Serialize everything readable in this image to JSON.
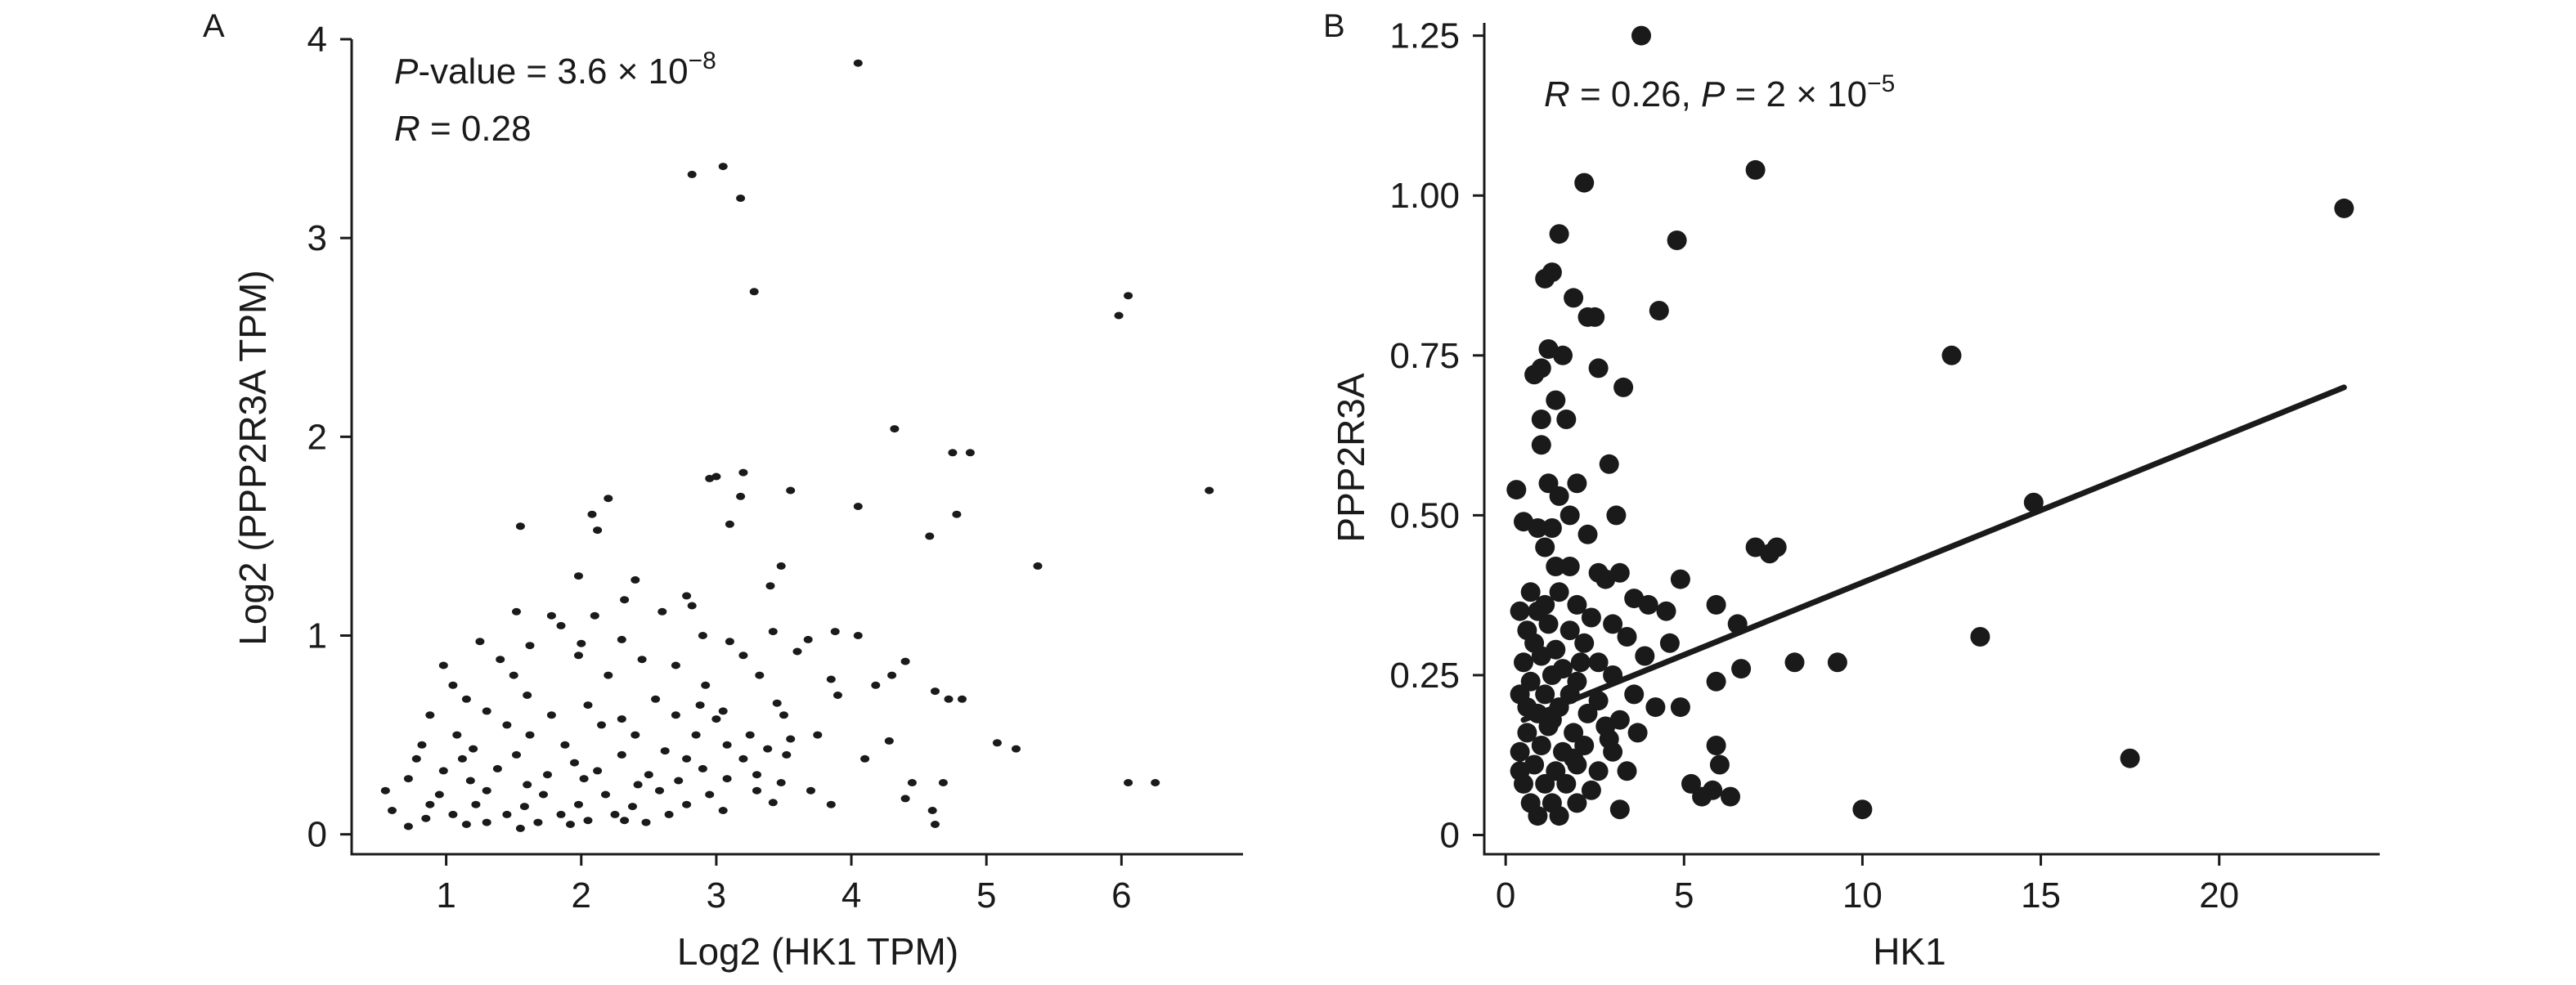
{
  "chart_data": [
    {
      "panel": "A",
      "type": "scatter",
      "xlabel": "Log2 (HK1 TPM)",
      "ylabel": "Log2 (PPP2R3A TPM)",
      "xlim": [
        0.3,
        6.9
      ],
      "ylim": [
        -0.1,
        4.0
      ],
      "xticks": [
        1,
        2,
        3,
        4,
        5,
        6
      ],
      "yticks": [
        0,
        1,
        2,
        3,
        4
      ],
      "grid": false,
      "annotation": {
        "line1_italic": "P",
        "line1_rest": "-value = 3.6 × 10",
        "line1_exp": "−8",
        "line2_italic": "R",
        "line2_rest": " = 0.28"
      },
      "points": [
        [
          4.05,
          3.88
        ],
        [
          2.82,
          3.32
        ],
        [
          3.05,
          3.36
        ],
        [
          3.18,
          3.2
        ],
        [
          3.28,
          2.73
        ],
        [
          6.05,
          2.71
        ],
        [
          5.98,
          2.61
        ],
        [
          4.32,
          2.04
        ],
        [
          4.75,
          1.92
        ],
        [
          4.88,
          1.92
        ],
        [
          6.65,
          1.73
        ],
        [
          2.2,
          1.69
        ],
        [
          2.08,
          1.61
        ],
        [
          3.2,
          1.82
        ],
        [
          2.95,
          1.79
        ],
        [
          3.0,
          1.8
        ],
        [
          3.55,
          1.73
        ],
        [
          3.18,
          1.7
        ],
        [
          4.05,
          1.65
        ],
        [
          4.78,
          1.61
        ],
        [
          3.1,
          1.56
        ],
        [
          1.55,
          1.55
        ],
        [
          2.12,
          1.53
        ],
        [
          4.58,
          1.5
        ],
        [
          5.38,
          1.35
        ],
        [
          3.48,
          1.35
        ],
        [
          1.98,
          1.3
        ],
        [
          2.4,
          1.28
        ],
        [
          2.78,
          1.2
        ],
        [
          3.4,
          1.25
        ],
        [
          2.32,
          1.18
        ],
        [
          2.82,
          1.15
        ],
        [
          1.52,
          1.12
        ],
        [
          1.78,
          1.1
        ],
        [
          2.1,
          1.1
        ],
        [
          2.6,
          1.12
        ],
        [
          1.85,
          1.05
        ],
        [
          1.25,
          0.97
        ],
        [
          1.62,
          0.95
        ],
        [
          2.0,
          0.96
        ],
        [
          2.3,
          0.98
        ],
        [
          2.9,
          1.0
        ],
        [
          3.1,
          0.97
        ],
        [
          3.42,
          1.02
        ],
        [
          3.68,
          0.98
        ],
        [
          3.88,
          1.02
        ],
        [
          4.05,
          1.0
        ],
        [
          0.98,
          0.85
        ],
        [
          1.4,
          0.88
        ],
        [
          1.98,
          0.9
        ],
        [
          2.45,
          0.88
        ],
        [
          2.7,
          0.85
        ],
        [
          3.2,
          0.9
        ],
        [
          3.6,
          0.92
        ],
        [
          4.4,
          0.87
        ],
        [
          1.05,
          0.75
        ],
        [
          1.5,
          0.8
        ],
        [
          2.2,
          0.8
        ],
        [
          2.92,
          0.75
        ],
        [
          3.32,
          0.8
        ],
        [
          3.85,
          0.78
        ],
        [
          4.3,
          0.8
        ],
        [
          4.62,
          0.72
        ],
        [
          4.72,
          0.68
        ],
        [
          4.82,
          0.68
        ],
        [
          1.15,
          0.68
        ],
        [
          1.6,
          0.7
        ],
        [
          2.05,
          0.65
        ],
        [
          2.55,
          0.68
        ],
        [
          2.88,
          0.65
        ],
        [
          3.05,
          0.62
        ],
        [
          3.45,
          0.66
        ],
        [
          3.9,
          0.7
        ],
        [
          4.18,
          0.75
        ],
        [
          0.88,
          0.6
        ],
        [
          1.3,
          0.62
        ],
        [
          1.78,
          0.6
        ],
        [
          2.3,
          0.58
        ],
        [
          2.7,
          0.6
        ],
        [
          3.0,
          0.58
        ],
        [
          3.5,
          0.6
        ],
        [
          1.45,
          0.55
        ],
        [
          2.15,
          0.55
        ],
        [
          2.85,
          0.5
        ],
        [
          3.25,
          0.5
        ],
        [
          3.75,
          0.5
        ],
        [
          1.08,
          0.5
        ],
        [
          1.62,
          0.5
        ],
        [
          2.4,
          0.5
        ],
        [
          3.55,
          0.48
        ],
        [
          4.28,
          0.47
        ],
        [
          0.82,
          0.45
        ],
        [
          1.2,
          0.43
        ],
        [
          1.88,
          0.45
        ],
        [
          2.62,
          0.42
        ],
        [
          3.08,
          0.45
        ],
        [
          3.38,
          0.43
        ],
        [
          5.08,
          0.46
        ],
        [
          5.22,
          0.43
        ],
        [
          0.78,
          0.38
        ],
        [
          1.12,
          0.38
        ],
        [
          1.52,
          0.4
        ],
        [
          1.95,
          0.36
        ],
        [
          2.3,
          0.4
        ],
        [
          2.78,
          0.38
        ],
        [
          3.2,
          0.38
        ],
        [
          3.52,
          0.4
        ],
        [
          4.1,
          0.38
        ],
        [
          0.98,
          0.32
        ],
        [
          1.38,
          0.33
        ],
        [
          1.75,
          0.3
        ],
        [
          2.12,
          0.32
        ],
        [
          2.5,
          0.3
        ],
        [
          2.9,
          0.33
        ],
        [
          3.3,
          0.3
        ],
        [
          0.72,
          0.28
        ],
        [
          1.18,
          0.27
        ],
        [
          1.6,
          0.25
        ],
        [
          2.02,
          0.28
        ],
        [
          2.42,
          0.25
        ],
        [
          2.72,
          0.27
        ],
        [
          3.08,
          0.28
        ],
        [
          3.48,
          0.26
        ],
        [
          4.45,
          0.26
        ],
        [
          4.68,
          0.26
        ],
        [
          6.05,
          0.26
        ],
        [
          6.25,
          0.26
        ],
        [
          0.55,
          0.22
        ],
        [
          0.95,
          0.2
        ],
        [
          1.3,
          0.22
        ],
        [
          1.72,
          0.2
        ],
        [
          2.18,
          0.2
        ],
        [
          2.58,
          0.22
        ],
        [
          2.95,
          0.2
        ],
        [
          3.3,
          0.22
        ],
        [
          3.7,
          0.22
        ],
        [
          4.4,
          0.18
        ],
        [
          0.88,
          0.15
        ],
        [
          1.22,
          0.15
        ],
        [
          1.58,
          0.14
        ],
        [
          1.98,
          0.15
        ],
        [
          2.38,
          0.14
        ],
        [
          2.78,
          0.15
        ],
        [
          3.42,
          0.16
        ],
        [
          3.85,
          0.15
        ],
        [
          0.6,
          0.12
        ],
        [
          1.05,
          0.1
        ],
        [
          1.45,
          0.1
        ],
        [
          1.85,
          0.1
        ],
        [
          2.25,
          0.1
        ],
        [
          2.65,
          0.1
        ],
        [
          3.05,
          0.12
        ],
        [
          4.6,
          0.12
        ],
        [
          0.85,
          0.08
        ],
        [
          1.3,
          0.06
        ],
        [
          1.68,
          0.06
        ],
        [
          2.05,
          0.07
        ],
        [
          2.48,
          0.06
        ],
        [
          0.72,
          0.04
        ],
        [
          1.15,
          0.05
        ],
        [
          1.55,
          0.03
        ],
        [
          1.92,
          0.05
        ],
        [
          2.32,
          0.07
        ],
        [
          4.62,
          0.05
        ]
      ]
    },
    {
      "panel": "B",
      "type": "scatter",
      "xlabel": "HK1",
      "ylabel": "PPP2R3A",
      "xlim": [
        -0.6,
        24.5
      ],
      "ylim": [
        -0.03,
        1.27
      ],
      "xticks": [
        0,
        5,
        10,
        15,
        20
      ],
      "yticks": [
        0,
        0.25,
        0.5,
        0.75,
        1.0,
        1.25
      ],
      "ytick_labels": [
        "0",
        "0.25",
        "0.50",
        "0.75",
        "1.00",
        "1.25"
      ],
      "grid": false,
      "annotation": {
        "r_italic": "R",
        "r_rest": " = 0.26, ",
        "p_italic": "P",
        "p_rest": " = 2 × 10",
        "p_exp": "−5"
      },
      "trendline": {
        "x": [
          0.5,
          23.5
        ],
        "y": [
          0.18,
          0.7
        ]
      },
      "points": [
        [
          3.8,
          1.25
        ],
        [
          7.0,
          1.04
        ],
        [
          2.2,
          1.02
        ],
        [
          23.5,
          0.98
        ],
        [
          1.5,
          0.94
        ],
        [
          4.8,
          0.93
        ],
        [
          1.3,
          0.88
        ],
        [
          1.1,
          0.87
        ],
        [
          1.9,
          0.84
        ],
        [
          2.3,
          0.81
        ],
        [
          2.5,
          0.81
        ],
        [
          4.3,
          0.82
        ],
        [
          1.2,
          0.76
        ],
        [
          1.6,
          0.75
        ],
        [
          12.5,
          0.75
        ],
        [
          0.8,
          0.72
        ],
        [
          1.0,
          0.73
        ],
        [
          2.6,
          0.73
        ],
        [
          3.3,
          0.7
        ],
        [
          1.4,
          0.68
        ],
        [
          1.0,
          0.65
        ],
        [
          1.7,
          0.65
        ],
        [
          1.0,
          0.61
        ],
        [
          2.9,
          0.58
        ],
        [
          0.3,
          0.54
        ],
        [
          1.2,
          0.55
        ],
        [
          1.5,
          0.53
        ],
        [
          2.0,
          0.55
        ],
        [
          0.5,
          0.49
        ],
        [
          0.9,
          0.48
        ],
        [
          1.3,
          0.48
        ],
        [
          1.8,
          0.5
        ],
        [
          3.1,
          0.5
        ],
        [
          14.8,
          0.52
        ],
        [
          1.1,
          0.45
        ],
        [
          2.3,
          0.47
        ],
        [
          7.0,
          0.45
        ],
        [
          7.4,
          0.44
        ],
        [
          7.6,
          0.45
        ],
        [
          1.4,
          0.42
        ],
        [
          1.8,
          0.42
        ],
        [
          2.6,
          0.41
        ],
        [
          3.2,
          0.41
        ],
        [
          4.9,
          0.4
        ],
        [
          0.7,
          0.38
        ],
        [
          1.1,
          0.36
        ],
        [
          1.5,
          0.38
        ],
        [
          2.8,
          0.4
        ],
        [
          3.6,
          0.37
        ],
        [
          0.4,
          0.35
        ],
        [
          0.9,
          0.35
        ],
        [
          2.0,
          0.36
        ],
        [
          4.0,
          0.36
        ],
        [
          4.5,
          0.35
        ],
        [
          5.9,
          0.36
        ],
        [
          0.6,
          0.32
        ],
        [
          1.2,
          0.33
        ],
        [
          1.8,
          0.32
        ],
        [
          2.4,
          0.34
        ],
        [
          3.0,
          0.33
        ],
        [
          6.5,
          0.33
        ],
        [
          13.3,
          0.31
        ],
        [
          0.8,
          0.3
        ],
        [
          1.4,
          0.29
        ],
        [
          2.2,
          0.3
        ],
        [
          3.4,
          0.31
        ],
        [
          4.6,
          0.3
        ],
        [
          0.5,
          0.27
        ],
        [
          1.0,
          0.28
        ],
        [
          1.6,
          0.26
        ],
        [
          2.6,
          0.27
        ],
        [
          3.9,
          0.28
        ],
        [
          6.6,
          0.26
        ],
        [
          8.1,
          0.27
        ],
        [
          9.3,
          0.27
        ],
        [
          0.7,
          0.24
        ],
        [
          1.3,
          0.25
        ],
        [
          2.0,
          0.24
        ],
        [
          3.0,
          0.25
        ],
        [
          5.9,
          0.24
        ],
        [
          0.4,
          0.22
        ],
        [
          1.1,
          0.22
        ],
        [
          1.8,
          0.22
        ],
        [
          2.6,
          0.21
        ],
        [
          3.6,
          0.22
        ],
        [
          0.9,
          0.19
        ],
        [
          1.5,
          0.2
        ],
        [
          2.3,
          0.19
        ],
        [
          3.2,
          0.18
        ],
        [
          4.2,
          0.2
        ],
        [
          4.9,
          0.2
        ],
        [
          0.6,
          0.16
        ],
        [
          1.2,
          0.17
        ],
        [
          1.9,
          0.16
        ],
        [
          2.8,
          0.17
        ],
        [
          3.7,
          0.16
        ],
        [
          5.9,
          0.14
        ],
        [
          0.4,
          0.13
        ],
        [
          1.0,
          0.14
        ],
        [
          1.6,
          0.13
        ],
        [
          2.2,
          0.14
        ],
        [
          3.0,
          0.13
        ],
        [
          17.5,
          0.12
        ],
        [
          0.8,
          0.11
        ],
        [
          1.4,
          0.1
        ],
        [
          2.0,
          0.11
        ],
        [
          2.6,
          0.1
        ],
        [
          3.4,
          0.1
        ],
        [
          6.0,
          0.11
        ],
        [
          0.5,
          0.08
        ],
        [
          1.1,
          0.08
        ],
        [
          1.7,
          0.08
        ],
        [
          2.4,
          0.07
        ],
        [
          5.2,
          0.08
        ],
        [
          5.8,
          0.07
        ],
        [
          0.7,
          0.05
        ],
        [
          1.3,
          0.05
        ],
        [
          2.0,
          0.05
        ],
        [
          3.2,
          0.04
        ],
        [
          5.5,
          0.06
        ],
        [
          6.3,
          0.06
        ],
        [
          10.0,
          0.04
        ],
        [
          0.9,
          0.03
        ],
        [
          1.5,
          0.03
        ],
        [
          0.4,
          0.1
        ],
        [
          1.9,
          0.12
        ],
        [
          2.9,
          0.15
        ],
        [
          0.6,
          0.2
        ],
        [
          1.3,
          0.18
        ],
        [
          2.1,
          0.27
        ]
      ]
    }
  ]
}
